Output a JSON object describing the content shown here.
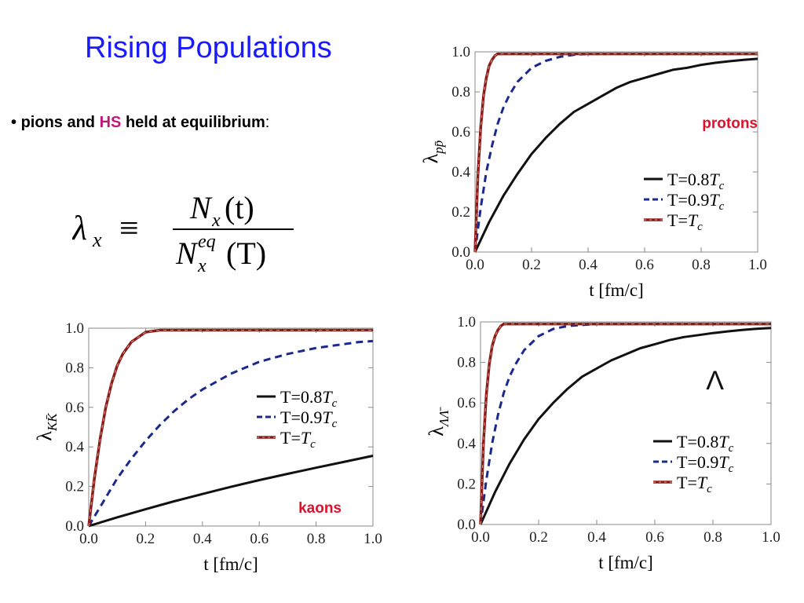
{
  "slide": {
    "title": "Rising Populations",
    "bullet": {
      "marker": "•",
      "text_1": "pions and",
      "highlight": "HS",
      "text_2": "held at equilibrium",
      "colon": ":"
    },
    "formula": {
      "lhs_symbol": "λ",
      "lhs_sub": "x",
      "relation": "≡",
      "num_main": "N",
      "num_sub": "x",
      "num_arg": "(t)",
      "den_main": "N",
      "den_sub": "x",
      "den_sup": "eq",
      "den_arg": "(T)"
    }
  },
  "colors": {
    "title": "#1a1aff",
    "highlight": "#c0187a",
    "annotation": "#e0102a",
    "series_08": "#111111",
    "series_09": "#1a2a8c",
    "series_10": "#8b1a1a",
    "series_10_dash": "#e0a080"
  },
  "chart_data": [
    {
      "id": "protons",
      "type": "line",
      "annotation": "protons",
      "xlabel": "t [fm/c]",
      "ylabel_main": "λ",
      "ylabel_sub": "pp̄",
      "xlim": [
        0,
        1
      ],
      "ylim": [
        0,
        1
      ],
      "xticks": [
        "0.0",
        "0.2",
        "0.4",
        "0.6",
        "0.8",
        "1.0"
      ],
      "yticks": [
        "0.0",
        "0.2",
        "0.4",
        "0.6",
        "0.8",
        "1.0"
      ],
      "legend": [
        {
          "label_main": "T=0.8",
          "label_var": "T",
          "label_sub": "c"
        },
        {
          "label_main": "T=0.9",
          "label_var": "T",
          "label_sub": "c"
        },
        {
          "label_main": "T=",
          "label_var": "T",
          "label_sub": "c"
        }
      ],
      "series": [
        {
          "x": [
            0,
            0.05,
            0.1,
            0.15,
            0.2,
            0.25,
            0.3,
            0.35,
            0.4,
            0.45,
            0.5,
            0.55,
            0.6,
            0.65,
            0.7,
            0.75,
            0.8,
            0.85,
            0.9,
            0.95,
            1.0
          ],
          "y": [
            0,
            0.15,
            0.28,
            0.39,
            0.49,
            0.57,
            0.64,
            0.7,
            0.74,
            0.78,
            0.82,
            0.85,
            0.87,
            0.89,
            0.91,
            0.92,
            0.935,
            0.945,
            0.953,
            0.96,
            0.965
          ]
        },
        {
          "x": [
            0,
            0.02,
            0.04,
            0.06,
            0.08,
            0.1,
            0.12,
            0.15,
            0.2,
            0.25,
            0.3,
            0.35,
            0.4,
            0.5,
            0.6,
            0.8,
            1.0
          ],
          "y": [
            0,
            0.22,
            0.4,
            0.53,
            0.64,
            0.72,
            0.78,
            0.85,
            0.92,
            0.955,
            0.975,
            0.985,
            0.99,
            0.99,
            0.99,
            0.99,
            0.99
          ]
        },
        {
          "x": [
            0,
            0.01,
            0.02,
            0.03,
            0.04,
            0.05,
            0.06,
            0.07,
            0.08,
            0.1,
            0.2,
            0.4,
            0.6,
            0.8,
            1.0
          ],
          "y": [
            0,
            0.38,
            0.62,
            0.78,
            0.87,
            0.93,
            0.96,
            0.98,
            0.99,
            0.99,
            0.99,
            0.99,
            0.99,
            0.99,
            0.99
          ]
        }
      ]
    },
    {
      "id": "kaons",
      "type": "line",
      "annotation": "kaons",
      "xlabel": "t [fm/c]",
      "ylabel_main": "λ",
      "ylabel_sub": "KK̄",
      "xlim": [
        0,
        1
      ],
      "ylim": [
        0,
        1
      ],
      "xticks": [
        "0.0",
        "0.2",
        "0.4",
        "0.6",
        "0.8",
        "1.0"
      ],
      "yticks": [
        "0.0",
        "0.2",
        "0.4",
        "0.6",
        "0.8",
        "1.0"
      ],
      "legend": [
        {
          "label_main": "T=0.8",
          "label_var": "T",
          "label_sub": "c"
        },
        {
          "label_main": "T=0.9",
          "label_var": "T",
          "label_sub": "c"
        },
        {
          "label_main": "T=",
          "label_var": "T",
          "label_sub": "c"
        }
      ],
      "series": [
        {
          "x": [
            0,
            0.1,
            0.2,
            0.3,
            0.4,
            0.5,
            0.6,
            0.7,
            0.8,
            0.9,
            1.0
          ],
          "y": [
            0,
            0.044,
            0.085,
            0.125,
            0.162,
            0.198,
            0.232,
            0.264,
            0.295,
            0.325,
            0.355
          ]
        },
        {
          "x": [
            0,
            0.05,
            0.1,
            0.15,
            0.2,
            0.25,
            0.3,
            0.35,
            0.4,
            0.45,
            0.5,
            0.55,
            0.6,
            0.65,
            0.7,
            0.75,
            0.8,
            0.85,
            0.9,
            0.95,
            1.0
          ],
          "y": [
            0,
            0.12,
            0.24,
            0.34,
            0.43,
            0.51,
            0.58,
            0.64,
            0.69,
            0.73,
            0.77,
            0.8,
            0.83,
            0.85,
            0.87,
            0.885,
            0.9,
            0.91,
            0.92,
            0.93,
            0.935
          ]
        },
        {
          "x": [
            0,
            0.02,
            0.04,
            0.06,
            0.08,
            0.1,
            0.12,
            0.15,
            0.2,
            0.25,
            0.3,
            0.4,
            0.6,
            0.8,
            1.0
          ],
          "y": [
            0,
            0.24,
            0.44,
            0.6,
            0.72,
            0.81,
            0.87,
            0.93,
            0.98,
            0.99,
            0.99,
            0.99,
            0.99,
            0.99,
            0.99
          ]
        }
      ]
    },
    {
      "id": "lambda",
      "type": "line",
      "annotation": "Λ",
      "xlabel": "t [fm/c]",
      "ylabel_main": "λ",
      "ylabel_sub": "ΛΛ̄",
      "xlim": [
        0,
        1
      ],
      "ylim": [
        0,
        1
      ],
      "xticks": [
        "0.0",
        "0.2",
        "0.4",
        "0.6",
        "0.8",
        "1.0"
      ],
      "yticks": [
        "0.0",
        "0.2",
        "0.4",
        "0.6",
        "0.8",
        "1.0"
      ],
      "legend": [
        {
          "label_main": "T=0.8",
          "label_var": "T",
          "label_sub": "c"
        },
        {
          "label_main": "T=0.9",
          "label_var": "T",
          "label_sub": "c"
        },
        {
          "label_main": "T=",
          "label_var": "T",
          "label_sub": "c"
        }
      ],
      "series": [
        {
          "x": [
            0,
            0.05,
            0.1,
            0.15,
            0.2,
            0.25,
            0.3,
            0.35,
            0.4,
            0.45,
            0.5,
            0.55,
            0.6,
            0.65,
            0.7,
            0.75,
            0.8,
            0.85,
            0.9,
            0.95,
            1.0
          ],
          "y": [
            0,
            0.16,
            0.3,
            0.42,
            0.52,
            0.6,
            0.67,
            0.73,
            0.77,
            0.81,
            0.84,
            0.87,
            0.89,
            0.91,
            0.925,
            0.935,
            0.945,
            0.953,
            0.96,
            0.966,
            0.97
          ]
        },
        {
          "x": [
            0,
            0.02,
            0.04,
            0.06,
            0.08,
            0.1,
            0.12,
            0.15,
            0.2,
            0.25,
            0.3,
            0.35,
            0.4,
            0.5,
            0.6,
            0.8,
            1.0
          ],
          "y": [
            0,
            0.22,
            0.4,
            0.54,
            0.65,
            0.73,
            0.79,
            0.86,
            0.93,
            0.965,
            0.98,
            0.985,
            0.99,
            0.99,
            0.99,
            0.99,
            0.99
          ]
        },
        {
          "x": [
            0,
            0.01,
            0.02,
            0.03,
            0.04,
            0.05,
            0.06,
            0.07,
            0.08,
            0.1,
            0.2,
            0.4,
            0.6,
            0.8,
            1.0
          ],
          "y": [
            0,
            0.4,
            0.64,
            0.79,
            0.88,
            0.93,
            0.96,
            0.98,
            0.99,
            0.99,
            0.99,
            0.99,
            0.99,
            0.99,
            0.99
          ]
        }
      ]
    }
  ]
}
